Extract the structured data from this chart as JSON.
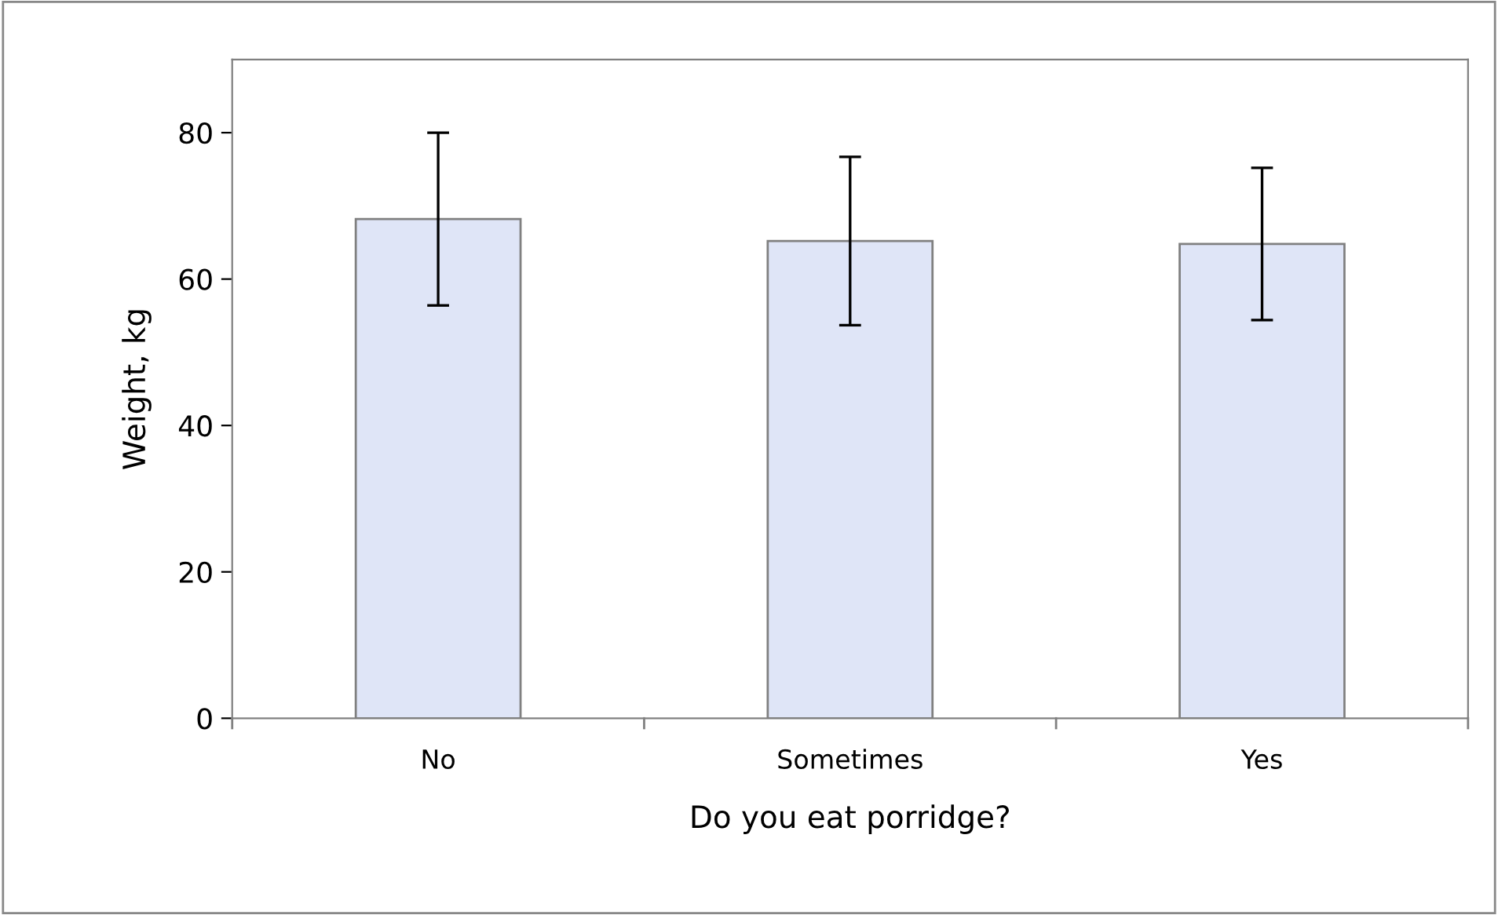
{
  "chart_data": {
    "type": "bar",
    "xlabel": "Do you eat porridge?",
    "ylabel": "Weight, kg",
    "categories": [
      "No",
      "Sometimes",
      "Yes"
    ],
    "values": [
      68.2,
      65.2,
      64.8
    ],
    "errors": [
      11.8,
      11.5,
      10.4
    ],
    "color": "#dfe5f7",
    "ylim": [
      0,
      90
    ],
    "yticks": [
      0,
      20,
      40,
      60,
      80
    ],
    "grid": false,
    "legend": false
  }
}
